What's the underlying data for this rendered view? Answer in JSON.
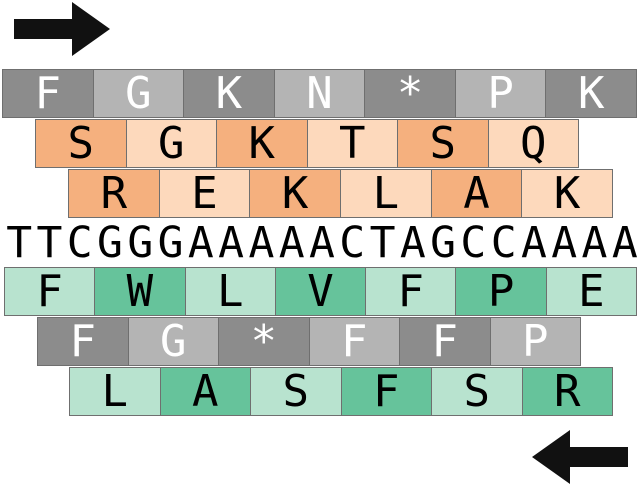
{
  "sequence": "TTCGGGAAAAACTAGCCAAAA",
  "frames": [
    {
      "id": "fwd-frame-1",
      "residues": [
        "F",
        "G",
        "K",
        "N",
        "*",
        "P",
        "K"
      ],
      "colors": [
        "#8c8c8c",
        "#b4b4b4"
      ],
      "text_color": "#ffffff"
    },
    {
      "id": "fwd-frame-2",
      "residues": [
        "S",
        "G",
        "K",
        "T",
        "S",
        "Q"
      ],
      "colors": [
        "#f5b07e",
        "#fdd9bc"
      ],
      "text_color": "#000000"
    },
    {
      "id": "fwd-frame-3",
      "residues": [
        "R",
        "E",
        "K",
        "L",
        "A",
        "K"
      ],
      "colors": [
        "#f5b07e",
        "#fdd9bc"
      ],
      "text_color": "#000000"
    },
    {
      "id": "rev-frame-1",
      "residues": [
        "F",
        "W",
        "L",
        "V",
        "F",
        "P",
        "E"
      ],
      "colors": [
        "#b8e3cf",
        "#66c39b"
      ],
      "text_color": "#000000"
    },
    {
      "id": "rev-frame-2",
      "residues": [
        "F",
        "G",
        "*",
        "F",
        "F",
        "P"
      ],
      "colors": [
        "#8c8c8c",
        "#b4b4b4"
      ],
      "text_color": "#ffffff"
    },
    {
      "id": "rev-frame-3",
      "residues": [
        "L",
        "A",
        "S",
        "F",
        "S",
        "R"
      ],
      "colors": [
        "#b8e3cf",
        "#66c39b"
      ],
      "text_color": "#000000"
    }
  ],
  "arrows": [
    {
      "id": "forward-arrow",
      "direction": "right"
    },
    {
      "id": "reverse-arrow",
      "direction": "left"
    }
  ]
}
